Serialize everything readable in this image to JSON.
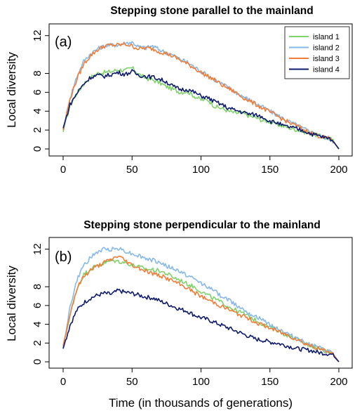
{
  "chart_data": [
    {
      "type": "line",
      "panel_label": "(a)",
      "title": "Stepping stone parallel to the mainland",
      "xlabel": "",
      "ylabel": "Local diversity",
      "xlim": [
        0,
        200
      ],
      "ylim": [
        0,
        12.5
      ],
      "xticks": [
        "0",
        "50",
        "100",
        "150",
        "200"
      ],
      "yticks": [
        "0",
        "2",
        "4",
        "6",
        "8",
        "12"
      ],
      "grid": false,
      "legend": "top-right",
      "x": [
        0,
        5,
        10,
        15,
        20,
        25,
        30,
        35,
        40,
        45,
        50,
        55,
        60,
        65,
        70,
        75,
        80,
        85,
        90,
        95,
        100,
        105,
        110,
        115,
        120,
        125,
        130,
        135,
        140,
        145,
        150,
        155,
        160,
        165,
        170,
        175,
        180,
        185,
        190,
        195,
        200
      ],
      "series": [
        {
          "name": "island 1",
          "color": "#7fd36a",
          "values": [
            1.8,
            4.6,
            5.9,
            6.9,
            7.6,
            8.0,
            8.1,
            8.2,
            8.4,
            8.3,
            8.6,
            7.9,
            7.5,
            7.3,
            7.0,
            6.6,
            6.3,
            6.0,
            6.1,
            5.6,
            5.2,
            5.2,
            4.5,
            4.3,
            4.0,
            3.8,
            3.8,
            3.5,
            3.3,
            3.0,
            2.9,
            2.6,
            2.4,
            2.2,
            2.0,
            1.8,
            1.6,
            1.4,
            1.2,
            1.0,
            0.0
          ]
        },
        {
          "name": "island 2",
          "color": "#86b9e9",
          "values": [
            2.0,
            5.4,
            7.7,
            9.3,
            10.1,
            10.6,
            10.9,
            11.0,
            11.0,
            11.2,
            11.3,
            10.8,
            10.7,
            10.9,
            10.5,
            10.2,
            9.9,
            9.5,
            9.2,
            8.7,
            8.2,
            7.8,
            7.3,
            6.9,
            6.5,
            6.0,
            5.6,
            5.2,
            4.8,
            4.4,
            4.0,
            3.6,
            3.2,
            2.8,
            2.5,
            2.1,
            1.8,
            1.5,
            1.2,
            1.0,
            0.0
          ]
        },
        {
          "name": "island 3",
          "color": "#f07d3a",
          "values": [
            2.0,
            5.3,
            7.4,
            9.0,
            9.9,
            10.5,
            10.9,
            11.0,
            11.0,
            11.1,
            10.9,
            10.6,
            10.7,
            10.6,
            10.3,
            10.1,
            9.8,
            9.4,
            9.0,
            8.6,
            8.1,
            7.7,
            7.3,
            6.8,
            6.4,
            6.0,
            5.5,
            5.1,
            4.7,
            4.3,
            3.9,
            3.5,
            3.1,
            2.7,
            2.4,
            2.0,
            1.7,
            1.4,
            1.2,
            1.0,
            0.0
          ]
        },
        {
          "name": "island 4",
          "color": "#0d1a6e",
          "values": [
            2.2,
            4.7,
            5.9,
            6.9,
            7.6,
            7.8,
            7.7,
            7.9,
            8.1,
            7.9,
            8.2,
            7.8,
            7.7,
            7.6,
            7.4,
            7.1,
            6.6,
            6.3,
            6.3,
            6.0,
            5.6,
            5.4,
            5.0,
            4.7,
            4.3,
            4.1,
            3.9,
            3.7,
            3.6,
            3.4,
            2.9,
            2.8,
            2.4,
            2.3,
            2.1,
            1.9,
            1.6,
            1.4,
            1.2,
            1.0,
            0.0
          ]
        }
      ]
    },
    {
      "type": "line",
      "panel_label": "(b)",
      "title": "Stepping stone perpendicular to the mainland",
      "xlabel": "Time (in thousands of generations)",
      "ylabel": "Local diversity",
      "xlim": [
        0,
        200
      ],
      "ylim": [
        0,
        12.5
      ],
      "xticks": [
        "0",
        "50",
        "100",
        "150",
        "200"
      ],
      "yticks": [
        "0",
        "2",
        "4",
        "6",
        "8",
        "12"
      ],
      "grid": false,
      "x": [
        0,
        5,
        10,
        15,
        20,
        25,
        30,
        35,
        40,
        45,
        50,
        55,
        60,
        65,
        70,
        75,
        80,
        85,
        90,
        95,
        100,
        105,
        110,
        115,
        120,
        125,
        130,
        135,
        140,
        145,
        150,
        155,
        160,
        165,
        170,
        175,
        180,
        185,
        190,
        195,
        200
      ],
      "series": [
        {
          "name": "island 1",
          "color": "#7fd36a",
          "values": [
            1.5,
            5.0,
            7.8,
            9.3,
            9.9,
            10.3,
            10.5,
            10.8,
            10.7,
            10.6,
            10.3,
            10.1,
            9.9,
            9.8,
            9.7,
            9.4,
            9.0,
            8.7,
            8.3,
            8.0,
            7.5,
            7.1,
            6.7,
            6.3,
            5.9,
            5.5,
            5.2,
            4.8,
            4.4,
            4.0,
            3.7,
            3.4,
            3.0,
            2.7,
            2.4,
            2.0,
            1.7,
            1.4,
            1.2,
            1.0,
            0.0
          ]
        },
        {
          "name": "island 2",
          "color": "#86b9e9",
          "values": [
            1.6,
            5.8,
            8.7,
            10.3,
            11.1,
            11.7,
            12.0,
            12.0,
            12.1,
            11.8,
            11.5,
            11.3,
            11.0,
            10.8,
            10.6,
            10.2,
            9.9,
            9.6,
            9.2,
            8.8,
            8.4,
            8.0,
            7.5,
            7.0,
            6.6,
            6.1,
            5.7,
            5.2,
            4.8,
            4.4,
            4.0,
            3.6,
            3.2,
            2.8,
            2.5,
            2.1,
            1.8,
            1.5,
            1.2,
            1.0,
            0.0
          ]
        },
        {
          "name": "island 3",
          "color": "#f07d3a",
          "values": [
            1.7,
            5.1,
            7.8,
            9.1,
            9.8,
            10.2,
            10.6,
            10.9,
            11.3,
            10.8,
            10.3,
            10.0,
            9.7,
            9.4,
            9.2,
            8.9,
            8.6,
            8.2,
            7.9,
            7.4,
            7.0,
            6.6,
            6.3,
            5.9,
            5.6,
            5.2,
            4.9,
            4.6,
            4.2,
            3.9,
            3.6,
            3.3,
            3.0,
            2.7,
            2.4,
            2.0,
            1.7,
            1.4,
            1.2,
            1.0,
            0.0
          ]
        },
        {
          "name": "island 4",
          "color": "#0d1a6e",
          "values": [
            1.4,
            3.9,
            5.5,
            6.3,
            6.8,
            7.1,
            7.3,
            7.2,
            7.6,
            7.4,
            7.3,
            7.1,
            6.9,
            6.8,
            6.5,
            6.2,
            5.9,
            5.6,
            5.4,
            5.0,
            4.7,
            4.5,
            4.2,
            3.9,
            3.6,
            3.3,
            3.0,
            2.7,
            2.4,
            2.3,
            2.1,
            2.0,
            1.8,
            1.6,
            1.4,
            1.3,
            1.2,
            1.0,
            0.9,
            0.8,
            0.0
          ]
        }
      ]
    }
  ]
}
